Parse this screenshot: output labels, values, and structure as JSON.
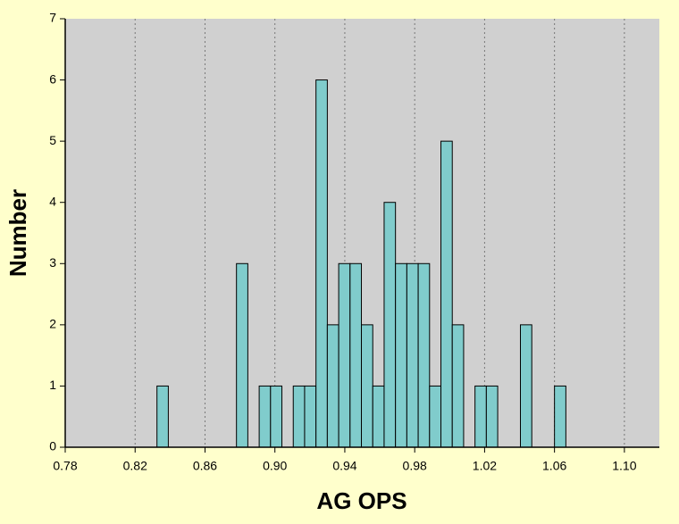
{
  "chart_data": {
    "type": "histogram",
    "xlabel": "AG OPS",
    "ylabel": "Number",
    "bins": [
      0.8325,
      0.839,
      0.8455,
      0.852,
      0.8585,
      0.865,
      0.8715,
      0.878,
      0.8845,
      0.891,
      0.8975,
      0.904,
      0.9105,
      0.917,
      0.9235,
      0.93,
      0.9365,
      0.943,
      0.9495,
      0.956,
      0.9625,
      0.969,
      0.9755,
      0.982,
      0.9885,
      0.995,
      1.0015,
      1.008,
      1.0145,
      1.021,
      1.0275,
      1.034,
      1.0405,
      1.047,
      1.0535,
      1.06,
      1.0665
    ],
    "values": [
      1,
      0,
      0,
      0,
      0,
      0,
      0,
      3,
      0,
      1,
      1,
      0,
      1,
      1,
      6,
      2,
      3,
      3,
      2,
      1,
      4,
      3,
      3,
      3,
      1,
      5,
      2,
      0,
      1,
      1,
      0,
      0,
      2,
      0,
      0,
      1
    ],
    "color": "#80cccc",
    "xlim": [
      0.78,
      1.12
    ],
    "xticks": [
      0.78,
      0.82,
      0.86,
      {
        "value": 0.9,
        "label": "0.90"
      },
      0.94,
      0.98,
      1.02,
      1.06,
      {
        "value": 1.1,
        "label": "1.10"
      }
    ],
    "ylim": [
      0,
      7
    ],
    "yticks": [
      0,
      1,
      2,
      3,
      4,
      5,
      6,
      7
    ],
    "grid": true
  }
}
